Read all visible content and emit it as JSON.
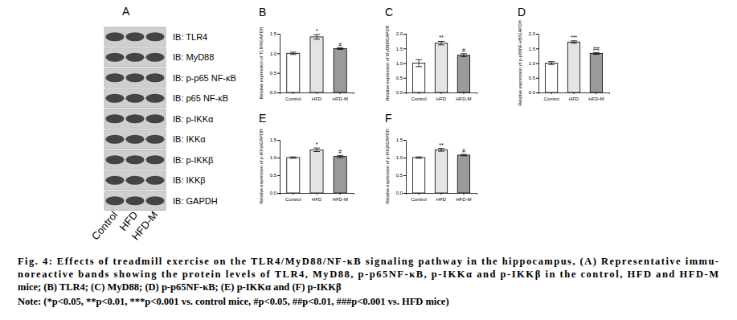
{
  "figure": {
    "panel_labels": [
      "A",
      "B",
      "C",
      "D",
      "E",
      "F"
    ],
    "blot_labels": [
      "IB: TLR4",
      "IB: MyD88",
      "IB: p-p65 NF-κB",
      "IB: p65 NF-κB",
      "IB: p-IKKα",
      "IB: IKKα",
      "IB: p-IKKβ",
      "IB: IKKβ",
      "IB: GAPDH"
    ],
    "lane_labels": [
      "Control",
      "HFD",
      "HFD-M"
    ],
    "caption_lines": [
      "Fig. 4: Effects of treadmill exercise on the TLR4/MyD88/NF-κB signaling pathway in the hippocampus, (A) Representative immu-",
      "noreactive bands showing the protein levels of TLR4, MyD88, p-p65NF-κB, p-IKKα and p-IKKβ in the control, HFD and HFD-M",
      "mice; (B) TLR4; (C) MyD88; (D) p-p65NF-κB; (E) p-IKKα and (F) p-IKKβ",
      "Note: (*p<0.05, **p<0.01, ***p<0.001 vs. control mice, #p<0.05, ##p<0.01, ###p<0.001 vs. HFD mice)"
    ]
  },
  "chart_data": [
    {
      "type": "bar",
      "y_label": "Relative expression of TLR4/GAPDH",
      "categories": [
        "Control",
        "HFD",
        "HFD-M"
      ],
      "values": [
        1.0,
        1.42,
        1.12
      ],
      "errors": [
        0.03,
        0.06,
        0.02
      ],
      "colors": [
        "#ffffff",
        "#e4e4e4",
        "#9a9a9a"
      ],
      "ylim": [
        0,
        1.5
      ],
      "yticks": [
        {
          "value": 0,
          "label": "0.0"
        },
        {
          "value": 0.5,
          "label": "0.5"
        },
        {
          "value": 1,
          "label": "1.0"
        },
        {
          "value": 1.5,
          "label": "1.5"
        }
      ],
      "grid": false,
      "annotations": [
        {
          "x": "HFD",
          "text": "*"
        },
        {
          "x": "HFD-M",
          "text": "#"
        }
      ]
    },
    {
      "type": "bar",
      "y_label": "Relative expression of MyD88/GAPDH",
      "categories": [
        "Control",
        "HFD",
        "HFD-M"
      ],
      "values": [
        1.0,
        1.68,
        1.27
      ],
      "errors": [
        0.12,
        0.06,
        0.05
      ],
      "colors": [
        "#ffffff",
        "#e4e4e4",
        "#9a9a9a"
      ],
      "ylim": [
        0,
        2
      ],
      "yticks": [
        {
          "value": 0,
          "label": "0.0"
        },
        {
          "value": 0.5,
          "label": "0.5"
        },
        {
          "value": 1,
          "label": "1.0"
        },
        {
          "value": 1.5,
          "label": "1.5"
        },
        {
          "value": 2,
          "label": "2.0"
        }
      ],
      "grid": false,
      "annotations": [
        {
          "x": "HFD",
          "text": "**"
        },
        {
          "x": "HFD-M",
          "text": "#"
        }
      ]
    },
    {
      "type": "bar",
      "y_label": "Relative expression of p-p65NF-κB/GAPDH",
      "categories": [
        "Control",
        "HFD",
        "HFD-M"
      ],
      "values": [
        1.0,
        1.72,
        1.33
      ],
      "errors": [
        0.05,
        0.04,
        0.03
      ],
      "colors": [
        "#ffffff",
        "#e4e4e4",
        "#9a9a9a"
      ],
      "ylim": [
        0,
        2
      ],
      "yticks": [
        {
          "value": 0,
          "label": "0.0"
        },
        {
          "value": 0.5,
          "label": "0.5"
        },
        {
          "value": 1,
          "label": "1.0"
        },
        {
          "value": 1.5,
          "label": "1.5"
        },
        {
          "value": 2,
          "label": "2.0"
        }
      ],
      "grid": false,
      "annotations": [
        {
          "x": "HFD",
          "text": "***"
        },
        {
          "x": "HFD-M",
          "text": "##"
        }
      ]
    },
    {
      "type": "bar",
      "y_label": "Relative expression of p-IKKα/GAPDH",
      "categories": [
        "Control",
        "HFD",
        "HFD-M"
      ],
      "values": [
        1.0,
        1.22,
        1.03
      ],
      "errors": [
        0.02,
        0.05,
        0.03
      ],
      "colors": [
        "#ffffff",
        "#e4e4e4",
        "#9a9a9a"
      ],
      "ylim": [
        0,
        1.5
      ],
      "yticks": [
        {
          "value": 0,
          "label": "0.0"
        },
        {
          "value": 0.5,
          "label": "0.5"
        },
        {
          "value": 1,
          "label": "1.0"
        },
        {
          "value": 1.5,
          "label": "1.5"
        }
      ],
      "grid": false,
      "annotations": [
        {
          "x": "HFD",
          "text": "*"
        },
        {
          "x": "HFD-M",
          "text": "#"
        }
      ]
    },
    {
      "type": "bar",
      "y_label": "Relative expression of p-IKKβ/GAPDH",
      "categories": [
        "Control",
        "HFD",
        "HFD-M"
      ],
      "values": [
        1.0,
        1.22,
        1.07
      ],
      "errors": [
        0.02,
        0.04,
        0.02
      ],
      "colors": [
        "#ffffff",
        "#e4e4e4",
        "#9a9a9a"
      ],
      "ylim": [
        0,
        1.5
      ],
      "yticks": [
        {
          "value": 0,
          "label": "0.0"
        },
        {
          "value": 0.5,
          "label": "0.5"
        },
        {
          "value": 1,
          "label": "1.0"
        },
        {
          "value": 1.5,
          "label": "1.5"
        }
      ],
      "grid": false,
      "annotations": [
        {
          "x": "HFD",
          "text": "**"
        },
        {
          "x": "HFD-M",
          "text": "#"
        }
      ]
    }
  ]
}
